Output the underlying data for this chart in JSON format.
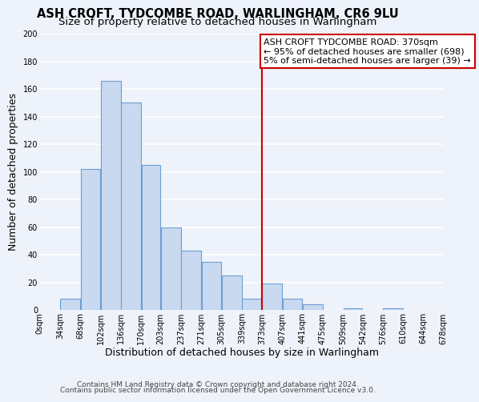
{
  "title": "ASH CROFT, TYDCOMBE ROAD, WARLINGHAM, CR6 9LU",
  "subtitle": "Size of property relative to detached houses in Warlingham",
  "xlabel": "Distribution of detached houses by size in Warlingham",
  "ylabel": "Number of detached properties",
  "bar_left_edges": [
    0,
    34,
    68,
    102,
    136,
    170,
    203,
    237,
    271,
    305,
    339,
    373,
    407,
    441,
    475,
    509,
    542,
    576,
    610,
    644
  ],
  "bar_widths": [
    34,
    34,
    34,
    34,
    34,
    33,
    34,
    34,
    34,
    34,
    34,
    34,
    34,
    34,
    34,
    33,
    34,
    34,
    34,
    34
  ],
  "bar_heights": [
    0,
    8,
    102,
    166,
    150,
    105,
    60,
    43,
    35,
    25,
    8,
    19,
    8,
    4,
    0,
    1,
    0,
    1,
    0,
    0
  ],
  "bar_facecolor": "#c9d9f0",
  "bar_edgecolor": "#6b9fd4",
  "tick_labels": [
    "0sqm",
    "34sqm",
    "68sqm",
    "102sqm",
    "136sqm",
    "170sqm",
    "203sqm",
    "237sqm",
    "271sqm",
    "305sqm",
    "339sqm",
    "373sqm",
    "407sqm",
    "441sqm",
    "475sqm",
    "509sqm",
    "542sqm",
    "576sqm",
    "610sqm",
    "644sqm",
    "678sqm"
  ],
  "vline_x": 373,
  "vline_color": "#cc0000",
  "annotation_text": "ASH CROFT TYDCOMBE ROAD: 370sqm\n← 95% of detached houses are smaller (698)\n5% of semi-detached houses are larger (39) →",
  "annotation_box_edgecolor": "#cc0000",
  "ylim": [
    0,
    200
  ],
  "yticks": [
    0,
    20,
    40,
    60,
    80,
    100,
    120,
    140,
    160,
    180,
    200
  ],
  "footer1": "Contains HM Land Registry data © Crown copyright and database right 2024.",
  "footer2": "Contains public sector information licensed under the Open Government Licence v3.0.",
  "bg_color": "#eef2fa",
  "grid_color": "#ffffff",
  "title_fontsize": 10.5,
  "subtitle_fontsize": 9.5,
  "axis_label_fontsize": 9,
  "tick_fontsize": 7,
  "footer_fontsize": 6.5,
  "annotation_fontsize": 8
}
